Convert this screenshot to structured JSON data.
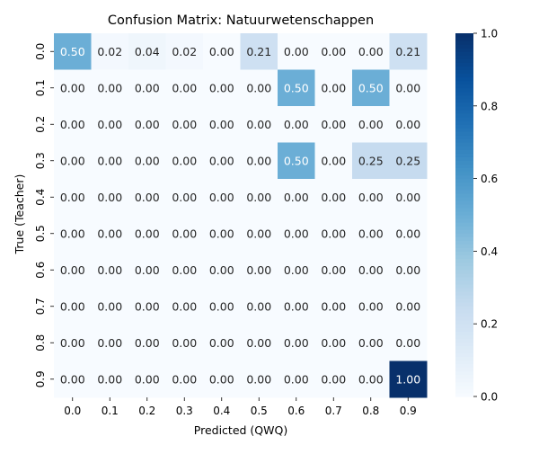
{
  "chart_data": {
    "type": "heatmap",
    "title": "Confusion Matrix: Natuurwetenschappen",
    "xlabel": "Predicted (QWQ)",
    "ylabel": "True (Teacher)",
    "x_categories": [
      "0.0",
      "0.1",
      "0.2",
      "0.3",
      "0.4",
      "0.5",
      "0.6",
      "0.7",
      "0.8",
      "0.9"
    ],
    "y_categories": [
      "0.0",
      "0.1",
      "0.2",
      "0.3",
      "0.4",
      "0.5",
      "0.6",
      "0.7",
      "0.8",
      "0.9"
    ],
    "values": [
      [
        0.5,
        0.02,
        0.04,
        0.02,
        0.0,
        0.21,
        0.0,
        0.0,
        0.0,
        0.21
      ],
      [
        0.0,
        0.0,
        0.0,
        0.0,
        0.0,
        0.0,
        0.5,
        0.0,
        0.5,
        0.0
      ],
      [
        0.0,
        0.0,
        0.0,
        0.0,
        0.0,
        0.0,
        0.0,
        0.0,
        0.0,
        0.0
      ],
      [
        0.0,
        0.0,
        0.0,
        0.0,
        0.0,
        0.0,
        0.5,
        0.0,
        0.25,
        0.25
      ],
      [
        0.0,
        0.0,
        0.0,
        0.0,
        0.0,
        0.0,
        0.0,
        0.0,
        0.0,
        0.0
      ],
      [
        0.0,
        0.0,
        0.0,
        0.0,
        0.0,
        0.0,
        0.0,
        0.0,
        0.0,
        0.0
      ],
      [
        0.0,
        0.0,
        0.0,
        0.0,
        0.0,
        0.0,
        0.0,
        0.0,
        0.0,
        0.0
      ],
      [
        0.0,
        0.0,
        0.0,
        0.0,
        0.0,
        0.0,
        0.0,
        0.0,
        0.0,
        0.0
      ],
      [
        0.0,
        0.0,
        0.0,
        0.0,
        0.0,
        0.0,
        0.0,
        0.0,
        0.0,
        0.0
      ],
      [
        0.0,
        0.0,
        0.0,
        0.0,
        0.0,
        0.0,
        0.0,
        0.0,
        0.0,
        1.0
      ]
    ],
    "value_format_decimals": 2,
    "colorbar": {
      "range": [
        0,
        1
      ],
      "ticks": [
        0.0,
        0.2,
        0.4,
        0.6,
        0.8,
        1.0
      ],
      "tick_labels": [
        "0.0",
        "0.2",
        "0.4",
        "0.6",
        "0.8",
        "1.0"
      ]
    },
    "colormap": "Blues",
    "colormap_stops": [
      "#f7fbff",
      "#deebf7",
      "#c6dbef",
      "#9ecae1",
      "#6baed6",
      "#4292c6",
      "#2171b5",
      "#08519c",
      "#08306b"
    ]
  }
}
